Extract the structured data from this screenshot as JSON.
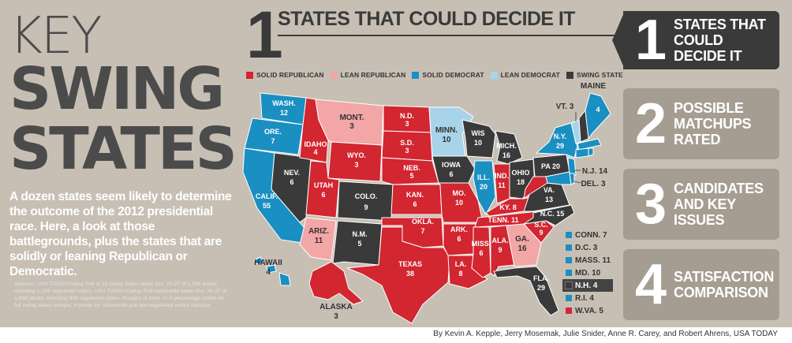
{
  "title": {
    "line1": "KEY",
    "line2": "SWING",
    "line3": "STATES"
  },
  "lede": "A dozen states seem likely to determine the outcome of the 2012 presidential race. Here, a look at those battlegrounds, plus the states that are solidly or leaning Republican or Democratic.",
  "sources": "Sources: USA TODAY/Gallup Poll of 12 swing states taken Oct. 20-27 of 1,334 adults, including 1,189 registered voters; USA TODAY/Gallup Poll nationwide taken Oct. 26-27 of 1,058 adults, including 908 registered voters. Margins of error +/–3 percentage points for full swing states sample; 4 points for nationwide poll and registered voters samples.",
  "section": {
    "number": "1",
    "title": "STATES THAT COULD DECIDE IT"
  },
  "legend": [
    {
      "label": "SOLID REPUBLICAN",
      "color": "#d22630"
    },
    {
      "label": "LEAN REPUBLICAN",
      "color": "#f2a6a6"
    },
    {
      "label": "SOLID DEMOCRAT",
      "color": "#1a8fc2"
    },
    {
      "label": "LEAN DEMOCRAT",
      "color": "#a8d4ea"
    },
    {
      "label": "SWING STATE",
      "color": "#3a3a3a"
    }
  ],
  "map_labels": {
    "wash": "WASH.",
    "wash_n": "12",
    "ore": "ORE.",
    "ore_n": "7",
    "calif": "CALIF.",
    "calif_n": "55",
    "nev": "NEV.",
    "nev_n": "6",
    "idaho": "IDAHO",
    "idaho_n": "4",
    "mont": "MONT.",
    "mont_n": "3",
    "wyo": "WYO.",
    "wyo_n": "3",
    "utah": "UTAH",
    "utah_n": "6",
    "ariz": "ARIZ.",
    "ariz_n": "11",
    "colo": "COLO.",
    "colo_n": "9",
    "nm": "N.M.",
    "nm_n": "5",
    "nd": "N.D.",
    "nd_n": "3",
    "sd": "S.D.",
    "sd_n": "3",
    "neb": "NEB.",
    "neb_n": "5",
    "kan": "KAN.",
    "kan_n": "6",
    "okla": "OKLA.",
    "okla_n": "7",
    "texas": "TEXAS",
    "texas_n": "38",
    "minn": "MINN.",
    "minn_n": "10",
    "iowa": "IOWA",
    "iowa_n": "6",
    "mo": "MO.",
    "mo_n": "10",
    "ark": "ARK.",
    "ark_n": "6",
    "la": "LA.",
    "la_n": "8",
    "wis": "WIS",
    "wis_n": "10",
    "ill": "ILL.",
    "ill_n": "20",
    "mich": "MICH.",
    "mich_n": "16",
    "ind": "IND.",
    "ind_n": "11",
    "ohio": "OHIO",
    "ohio_n": "18",
    "ky": "KY. 8",
    "tenn": "TENN. 11",
    "miss": "MISS.",
    "miss_n": "6",
    "ala": "ALA.",
    "ala_n": "9",
    "ga": "GA.",
    "ga_n": "16",
    "fla": "FLA.",
    "fla_n": "29",
    "sc": "S.C.",
    "sc_n": "9",
    "nc": "N.C. 15",
    "va": "VA.",
    "va_n": "13",
    "pa": "PA 20",
    "ny": "N.Y.",
    "ny_n": "29",
    "vt": "VT. 3",
    "maine": "MAINE",
    "maine_n": "4",
    "nj": "N.J. 14",
    "del": "DEL. 3",
    "hawaii": "HAWAII",
    "hawaii_n": "4",
    "alaska": "ALASKA",
    "alaska_n": "3"
  },
  "small_states": [
    {
      "label": "CONN. 7",
      "color": "#1a8fc2"
    },
    {
      "label": "D.C. 3",
      "color": "#1a8fc2"
    },
    {
      "label": "MASS. 11",
      "color": "#1a8fc2"
    },
    {
      "label": "MD. 10",
      "color": "#1a8fc2"
    },
    {
      "label": "N.H. 4",
      "color": "#3a3a3a",
      "swing": true
    },
    {
      "label": "R.I. 4",
      "color": "#1a8fc2"
    },
    {
      "label": "W.VA. 5",
      "color": "#d22630"
    }
  ],
  "nav": [
    {
      "number": "1",
      "label": "STATES THAT COULD DECIDE IT"
    },
    {
      "number": "2",
      "label": "POSSIBLE MATCHUPS RATED"
    },
    {
      "number": "3",
      "label": "CANDIDATES AND KEY ISSUES"
    },
    {
      "number": "4",
      "label": "SATISFACTION COMPARISON"
    }
  ],
  "byline": "By Kevin A. Kepple, Jerry Mosemak, Julie Snider, Anne R. Carey, and Robert Ahrens, USA TODAY"
}
